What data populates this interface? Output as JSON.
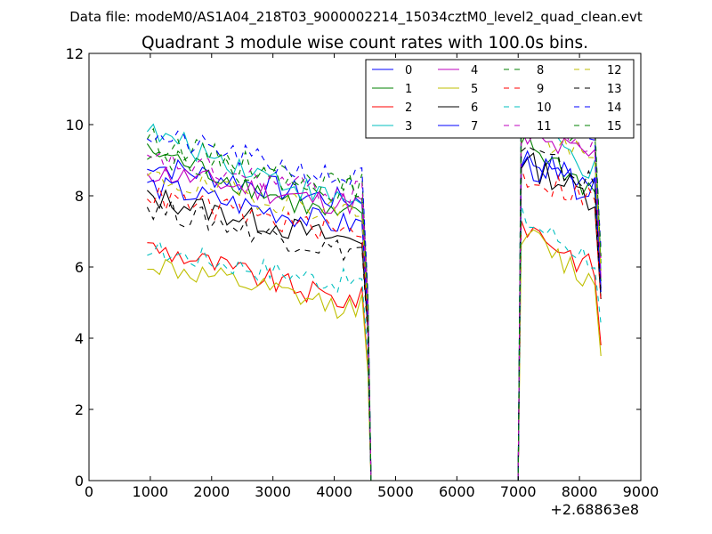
{
  "header": {
    "file_label": "Data file: modeM0/AS1A04_218T03_9000002214_15034cztM0_level2_quad_clean.evt"
  },
  "chart_data": {
    "type": "line",
    "title": "Quadrant 3 module wise count rates with 100.0s bins.",
    "xlabel": "",
    "ylabel": "",
    "x_offset_label": "+2.68863e8",
    "xlim": [
      0,
      9000
    ],
    "ylim": [
      0,
      12
    ],
    "xticks": [
      0,
      1000,
      2000,
      3000,
      4000,
      5000,
      6000,
      7000,
      8000,
      9000
    ],
    "yticks": [
      0,
      2,
      4,
      6,
      8,
      10,
      12
    ],
    "grid": false,
    "legend_position": "top-right",
    "x_segment1": [
      950,
      1050,
      1150,
      1250,
      1350,
      1450,
      1550,
      1650,
      1750,
      1850,
      1950,
      2050,
      2150,
      2250,
      2350,
      2450,
      2550,
      2650,
      2750,
      2850,
      2950,
      3050,
      3150,
      3250,
      3350,
      3450,
      3550,
      3650,
      3750,
      3850,
      3950,
      4050,
      4150,
      4250,
      4350,
      4450,
      4550
    ],
    "x_gap": [
      4600,
      6950
    ],
    "x_segment2": [
      7000,
      7050,
      7150,
      7250,
      7350,
      7450,
      7550,
      7650,
      7750,
      7850,
      7950,
      8050,
      8150,
      8250,
      8350
    ],
    "series": [
      {
        "name": "0",
        "color": "#0000ff",
        "dash": "solid",
        "base1": 8.9,
        "end1": 7.9,
        "base2": 9.1,
        "end2": 8.3,
        "last": 5.4
      },
      {
        "name": "1",
        "color": "#008000",
        "dash": "solid",
        "base1": 9.3,
        "end1": 7.4,
        "base2": 9.6,
        "end2": 8.1,
        "last": 5.6
      },
      {
        "name": "2",
        "color": "#ff0000",
        "dash": "solid",
        "base1": 6.6,
        "end1": 5.1,
        "base2": 7.3,
        "end2": 5.9,
        "last": 3.8
      },
      {
        "name": "3",
        "color": "#00bfbf",
        "dash": "solid",
        "base1": 9.8,
        "end1": 7.9,
        "base2": 10.2,
        "end2": 8.6,
        "last": 5.9
      },
      {
        "name": "4",
        "color": "#bf00bf",
        "dash": "solid",
        "base1": 8.7,
        "end1": 7.8,
        "base2": 9.6,
        "end2": 9.1,
        "last": 5.7
      },
      {
        "name": "5",
        "color": "#bfbf00",
        "dash": "solid",
        "base1": 6.1,
        "end1": 4.9,
        "base2": 7.0,
        "end2": 5.5,
        "last": 3.5
      },
      {
        "name": "6",
        "color": "#000000",
        "dash": "solid",
        "base1": 8.0,
        "end1": 6.8,
        "base2": 9.0,
        "end2": 7.9,
        "last": 5.1
      },
      {
        "name": "7",
        "color": "#0000ff",
        "dash": "solid",
        "base1": 8.3,
        "end1": 7.2,
        "base2": 8.9,
        "end2": 8.1,
        "last": 5.3
      },
      {
        "name": "8",
        "color": "#008000",
        "dash": "dashed",
        "base1": 9.6,
        "end1": 8.3,
        "base2": 10.5,
        "end2": 9.6,
        "last": 6.1
      },
      {
        "name": "9",
        "color": "#ff0000",
        "dash": "dashed",
        "base1": 8.0,
        "end1": 7.0,
        "base2": 8.6,
        "end2": 7.9,
        "last": 5.0
      },
      {
        "name": "10",
        "color": "#00bfbf",
        "dash": "dashed",
        "base1": 6.5,
        "end1": 5.6,
        "base2": 7.4,
        "end2": 6.2,
        "last": 4.4
      },
      {
        "name": "11",
        "color": "#bf00bf",
        "dash": "dashed",
        "base1": 9.0,
        "end1": 8.1,
        "base2": 10.3,
        "end2": 9.3,
        "last": 6.2
      },
      {
        "name": "12",
        "color": "#bfbf00",
        "dash": "dashed",
        "base1": 8.5,
        "end1": 7.6,
        "base2": 9.9,
        "end2": 8.9,
        "last": 5.9
      },
      {
        "name": "13",
        "color": "#000000",
        "dash": "dashed",
        "base1": 7.7,
        "end1": 6.5,
        "base2": 9.3,
        "end2": 8.3,
        "last": 5.2
      },
      {
        "name": "14",
        "color": "#0000ff",
        "dash": "dashed",
        "base1": 9.7,
        "end1": 8.5,
        "base2": 10.8,
        "end2": 9.8,
        "last": 6.5
      },
      {
        "name": "15",
        "color": "#008000",
        "dash": "dashed",
        "base1": 9.2,
        "end1": 8.2,
        "base2": 10.6,
        "end2": 9.7,
        "last": 6.3
      }
    ]
  }
}
